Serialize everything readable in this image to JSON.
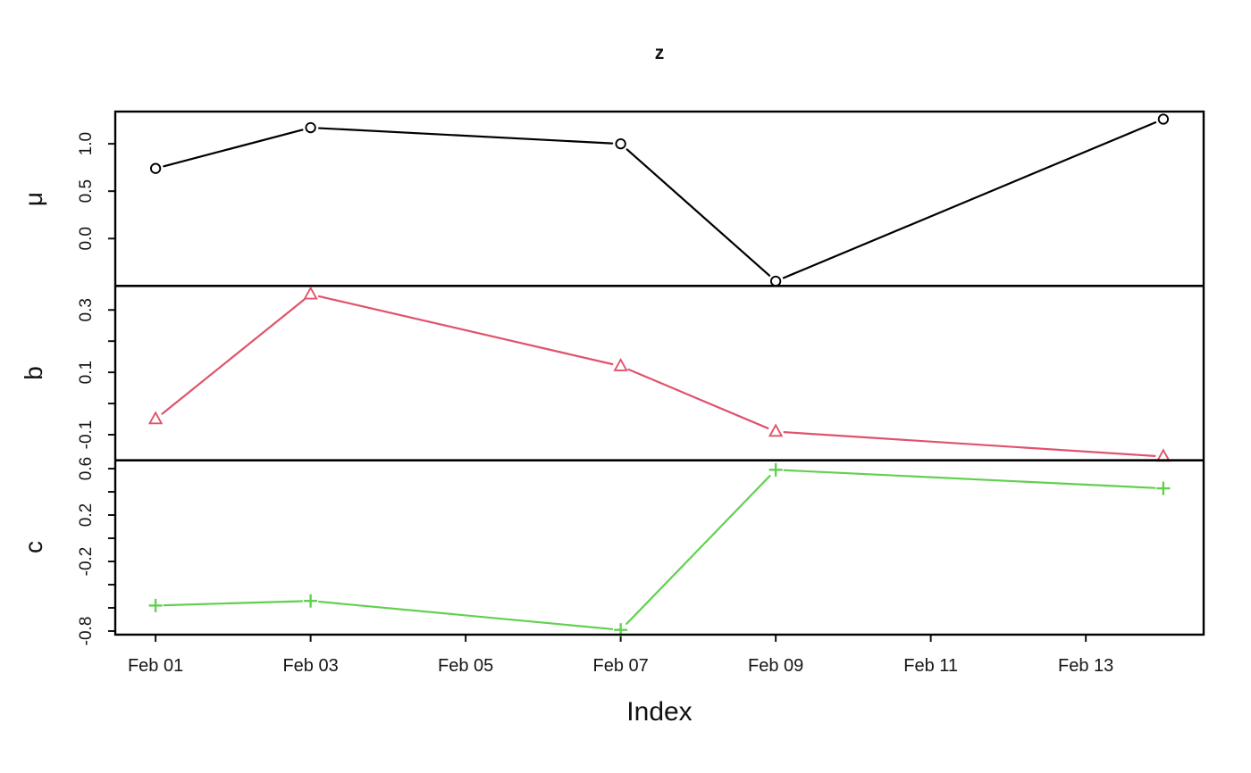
{
  "chart_data": {
    "type": "line",
    "title": "z",
    "xlabel": "Index",
    "layout_note": "three stacked panels sharing one x axis, zoo-style multi-panel time series",
    "xlim_days": [
      0.48,
      14.52
    ],
    "x_ticks": [
      {
        "day": 1,
        "label": "Feb 01"
      },
      {
        "day": 3,
        "label": "Feb 03"
      },
      {
        "day": 5,
        "label": "Feb 05"
      },
      {
        "day": 7,
        "label": "Feb 07"
      },
      {
        "day": 9,
        "label": "Feb 09"
      },
      {
        "day": 11,
        "label": "Feb 11"
      },
      {
        "day": 13,
        "label": "Feb 13"
      }
    ],
    "x_point_days": [
      1,
      3,
      7,
      9,
      14
    ],
    "x_point_labels": [
      "Feb 01",
      "Feb 03",
      "Feb 07",
      "Feb 09",
      "Feb 14"
    ],
    "panels": [
      {
        "ylabel": "μ",
        "color": "#000000",
        "marker": "circle",
        "values": [
          0.74,
          1.17,
          1.0,
          -0.45,
          1.26
        ],
        "ylim": [
          -0.5,
          1.34
        ],
        "ticks": [
          {
            "v": 0.0,
            "label": "0.0"
          },
          {
            "v": 0.5,
            "label": "0.5"
          },
          {
            "v": 1.0,
            "label": "1.0"
          }
        ]
      },
      {
        "ylabel": "b",
        "color": "#DF536B",
        "marker": "triangle-up",
        "values": [
          -0.05,
          0.35,
          0.12,
          -0.09,
          -0.17
        ],
        "ylim": [
          -0.182,
          0.377
        ],
        "ticks": [
          {
            "v": -0.1,
            "label": "-0.1"
          },
          {
            "v": 0.0,
            "label": ""
          },
          {
            "v": 0.1,
            "label": "0.1"
          },
          {
            "v": 0.2,
            "label": ""
          },
          {
            "v": 0.3,
            "label": "0.3"
          }
        ]
      },
      {
        "ylabel": "c",
        "color": "#61D04F",
        "marker": "plus",
        "values": [
          -0.58,
          -0.54,
          -0.79,
          0.59,
          0.43
        ],
        "ylim": [
          -0.831,
          0.672
        ],
        "ticks": [
          {
            "v": -0.8,
            "label": "-0.8"
          },
          {
            "v": -0.6,
            "label": ""
          },
          {
            "v": -0.4,
            "label": ""
          },
          {
            "v": -0.2,
            "label": "-0.2"
          },
          {
            "v": 0.0,
            "label": ""
          },
          {
            "v": 0.2,
            "label": "0.2"
          },
          {
            "v": 0.4,
            "label": ""
          },
          {
            "v": 0.6,
            "label": "0.6"
          }
        ]
      }
    ]
  }
}
